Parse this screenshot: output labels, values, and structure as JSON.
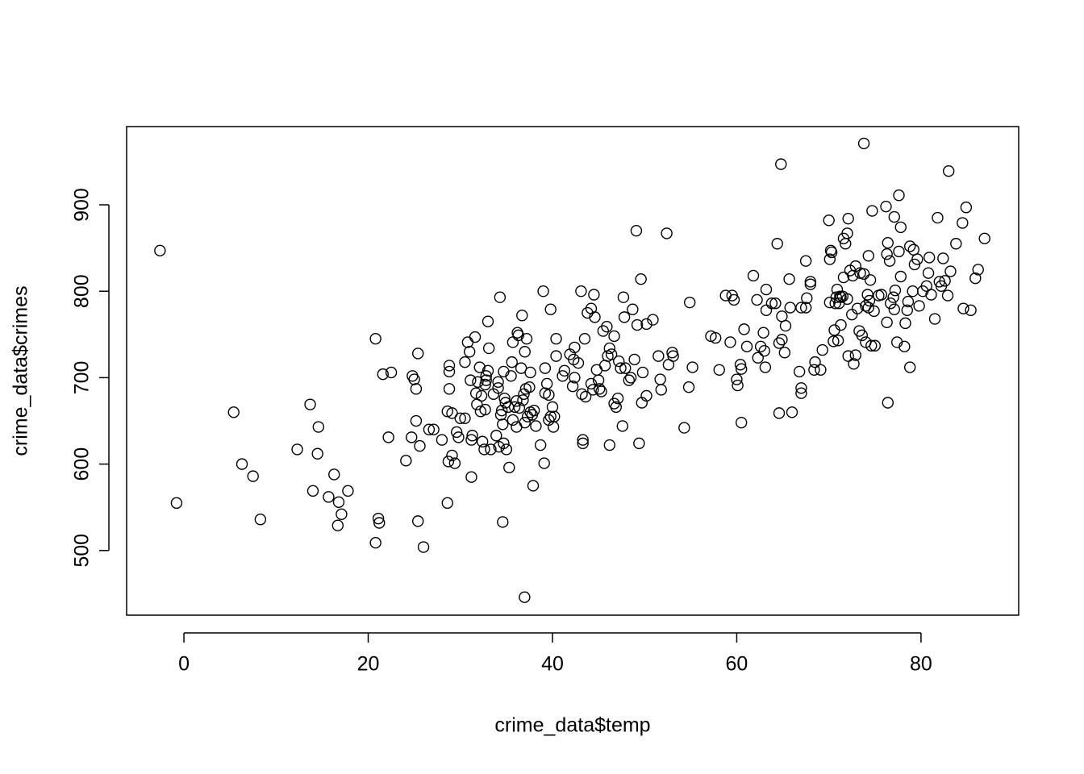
{
  "chart_data": {
    "type": "scatter",
    "xlabel": "crime_data$temp",
    "ylabel": "crime_data$crimes",
    "xlim": [
      -6.22,
      90.6
    ],
    "ylim": [
      425.2,
      990.5
    ],
    "xticks": [
      0,
      20,
      40,
      60,
      80
    ],
    "yticks": [
      500,
      600,
      700,
      800,
      900
    ],
    "color": "#000000",
    "x": [
      -2.6,
      -0.8,
      5.4,
      6.3,
      7.5,
      8.3,
      12.3,
      13.7,
      14.0,
      14.5,
      14.6,
      15.7,
      16.3,
      16.7,
      16.8,
      17.1,
      17.8,
      20.8,
      20.8,
      21.1,
      21.2,
      21.6,
      22.2,
      22.5,
      24.1,
      24.7,
      24.8,
      25.0,
      25.2,
      25.2,
      25.4,
      25.4,
      25.6,
      26.0,
      26.6,
      27.1,
      28.0,
      28.6,
      28.6,
      28.7,
      28.8,
      28.8,
      28.8,
      29.1,
      29.1,
      29.4,
      29.6,
      29.8,
      30.0,
      30.5,
      30.5,
      30.8,
      31.0,
      31.1,
      31.2,
      31.2,
      31.3,
      31.6,
      31.7,
      31.8,
      31.9,
      32.1,
      32.2,
      32.3,
      32.4,
      32.6,
      32.7,
      32.7,
      32.8,
      32.8,
      33.0,
      33.0,
      33.1,
      33.3,
      33.6,
      33.9,
      34.1,
      34.1,
      34.2,
      34.3,
      34.4,
      34.5,
      34.6,
      34.6,
      34.7,
      34.7,
      34.8,
      34.9,
      35.0,
      35.2,
      35.3,
      35.5,
      35.6,
      35.7,
      35.7,
      35.9,
      36.1,
      36.1,
      36.2,
      36.3,
      36.4,
      36.6,
      36.7,
      36.8,
      36.9,
      36.97,
      37.0,
      37.0,
      37.1,
      37.2,
      37.3,
      37.5,
      37.6,
      37.6,
      37.8,
      37.9,
      38.0,
      38.2,
      38.7,
      39.0,
      39.1,
      39.2,
      39.2,
      39.4,
      39.6,
      39.6,
      39.8,
      39.8,
      40.0,
      40.1,
      40.2,
      40.4,
      40.4,
      41.1,
      41.3,
      41.9,
      42.2,
      42.3,
      42.4,
      42.4,
      42.8,
      43.1,
      43.2,
      43.3,
      43.3,
      43.5,
      43.6,
      43.8,
      44.2,
      44.2,
      44.4,
      44.5,
      44.6,
      44.8,
      45.0,
      45.1,
      45.3,
      45.5,
      45.7,
      45.9,
      46.0,
      46.2,
      46.2,
      46.4,
      46.7,
      46.7,
      46.9,
      47.1,
      47.2,
      47.4,
      47.6,
      47.7,
      47.8,
      47.9,
      48.3,
      48.5,
      48.7,
      48.9,
      49.1,
      49.2,
      49.4,
      49.6,
      49.7,
      49.8,
      50.2,
      50.2,
      50.9,
      51.5,
      51.7,
      51.8,
      52.4,
      52.6,
      53.0,
      53.1,
      54.3,
      54.8,
      54.9,
      55.2,
      57.2,
      57.7,
      58.1,
      58.8,
      59.3,
      59.5,
      59.7,
      60.0,
      60.1,
      60.4,
      60.5,
      60.5,
      60.8,
      61.1,
      61.8,
      62.2,
      62.3,
      62.6,
      62.9,
      63.0,
      63.1,
      63.2,
      63.2,
      63.8,
      64.2,
      64.4,
      64.6,
      64.6,
      64.8,
      64.9,
      64.9,
      65.2,
      65.3,
      65.7,
      65.8,
      66.0,
      66.8,
      67.0,
      67.0,
      67.0,
      67.5,
      67.5,
      67.6,
      68.0,
      68.0,
      68.4,
      68.5,
      69.1,
      69.3,
      70.0,
      70.1,
      70.1,
      70.2,
      70.3,
      70.5,
      70.6,
      70.7,
      70.8,
      70.9,
      71.0,
      71.1,
      71.2,
      71.3,
      71.3,
      71.5,
      71.6,
      71.6,
      71.8,
      72.0,
      72.0,
      72.1,
      72.1,
      72.3,
      72.5,
      72.6,
      72.7,
      72.9,
      72.9,
      73.1,
      73.3,
      73.4,
      73.6,
      73.8,
      73.8,
      74.0,
      74.0,
      74.2,
      74.3,
      74.3,
      74.4,
      74.5,
      74.6,
      74.7,
      74.9,
      75.0,
      75.4,
      75.7,
      76.2,
      76.3,
      76.3,
      76.4,
      76.4,
      76.6,
      76.7,
      77.0,
      77.1,
      77.1,
      77.2,
      77.4,
      77.6,
      77.6,
      77.8,
      77.8,
      78.2,
      78.3,
      78.5,
      78.6,
      78.8,
      78.8,
      79.1,
      79.2,
      79.3,
      79.6,
      79.8,
      80.2,
      80.6,
      80.8,
      80.9,
      81.1,
      81.5,
      81.8,
      82.0,
      82.2,
      82.4,
      82.6,
      82.9,
      83.0,
      83.2,
      83.8,
      84.5,
      84.6,
      84.9,
      85.4,
      85.9,
      86.2,
      86.9
    ],
    "values": [
      847,
      555,
      660,
      600,
      586,
      536,
      617,
      669,
      569,
      612,
      643,
      562,
      588,
      529,
      556,
      542,
      569,
      745,
      509,
      537,
      532,
      704,
      631,
      706,
      604,
      631,
      702,
      698,
      687,
      650,
      728,
      534,
      621,
      504,
      640,
      640,
      628,
      555,
      661,
      603,
      687,
      707,
      714,
      610,
      659,
      601,
      637,
      631,
      653,
      653,
      718,
      741,
      730,
      697,
      585,
      628,
      633,
      747,
      682,
      669,
      695,
      712,
      661,
      679,
      626,
      617,
      663,
      692,
      702,
      697,
      708,
      765,
      734,
      617,
      681,
      633,
      688,
      695,
      620,
      793,
      657,
      662,
      646,
      533,
      707,
      624,
      676,
      671,
      617,
      666,
      596,
      702,
      718,
      741,
      651,
      666,
      673,
      643,
      752,
      749,
      665,
      711,
      772,
      674,
      681,
      446,
      730,
      648,
      687,
      745,
      655,
      689,
      706,
      660,
      657,
      575,
      662,
      644,
      622,
      800,
      601,
      682,
      711,
      693,
      651,
      680,
      779,
      655,
      666,
      643,
      655,
      725,
      745,
      702,
      708,
      727,
      690,
      721,
      700,
      735,
      717,
      800,
      681,
      628,
      624,
      745,
      678,
      775,
      693,
      780,
      686,
      796,
      770,
      709,
      697,
      687,
      684,
      754,
      714,
      759,
      725,
      622,
      734,
      727,
      748,
      670,
      666,
      676,
      719,
      711,
      644,
      793,
      770,
      711,
      697,
      700,
      779,
      721,
      870,
      761,
      624,
      814,
      671,
      706,
      762,
      679,
      767,
      725,
      698,
      686,
      867,
      715,
      729,
      725,
      642,
      689,
      787,
      712,
      748,
      746,
      709,
      795,
      741,
      795,
      790,
      698,
      691,
      715,
      710,
      648,
      756,
      736,
      818,
      790,
      723,
      736,
      752,
      731,
      712,
      802,
      778,
      786,
      786,
      855,
      659,
      740,
      947,
      771,
      744,
      729,
      760,
      814,
      781,
      660,
      707,
      781,
      688,
      682,
      781,
      835,
      792,
      811,
      808,
      709,
      718,
      709,
      732,
      882,
      837,
      787,
      847,
      845,
      742,
      755,
      786,
      793,
      802,
      743,
      786,
      794,
      793,
      761,
      794,
      861,
      816,
      855,
      791,
      867,
      884,
      725,
      824,
      773,
      818,
      716,
      726,
      829,
      780,
      754,
      821,
      749,
      971,
      820,
      783,
      741,
      796,
      781,
      841,
      789,
      813,
      737,
      893,
      777,
      737,
      795,
      796,
      898,
      843,
      764,
      671,
      856,
      835,
      786,
      793,
      886,
      779,
      801,
      741,
      846,
      911,
      874,
      817,
      736,
      763,
      778,
      788,
      852,
      712,
      800,
      848,
      831,
      837,
      783,
      800,
      806,
      821,
      839,
      796,
      768,
      885,
      811,
      806,
      838,
      812,
      795,
      939,
      823,
      855,
      879,
      780,
      897,
      778,
      815,
      825,
      861
    ]
  }
}
